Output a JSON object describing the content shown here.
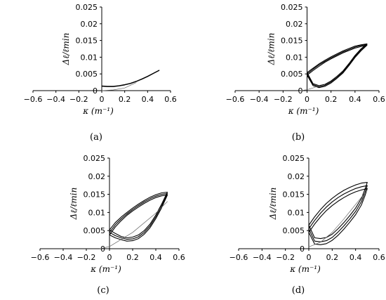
{
  "figure": {
    "panels": [
      "(a)",
      "(b)",
      "(c)",
      "(d)"
    ]
  },
  "chart_data": [
    {
      "type": "line",
      "panel_label": "(a)",
      "xlabel": "κ (m⁻¹)",
      "ylabel": "Δℓ/ℓmin",
      "xlim": [
        -0.6,
        0.6
      ],
      "ylim": [
        0,
        0.025
      ],
      "xticks": [
        -0.6,
        -0.4,
        -0.2,
        0,
        0.2,
        0.4,
        0.6
      ],
      "yticks": [
        0,
        0.005,
        0.01,
        0.015,
        0.02,
        0.025
      ],
      "xtick_labels": [
        "−0.6",
        "−0.4",
        "−0.2",
        "0",
        "0.2",
        "0.4",
        "0.6"
      ],
      "ytick_labels": [
        "0",
        "0.005",
        "0.01",
        "0.015",
        "0.02",
        "0.025"
      ],
      "series": [
        {
          "style": "main",
          "x": [
            0.0,
            0.05,
            0.1,
            0.15,
            0.2,
            0.25,
            0.3,
            0.35,
            0.4,
            0.45,
            0.5
          ],
          "y": [
            0.0014,
            0.0013,
            0.0013,
            0.0015,
            0.0018,
            0.0022,
            0.0028,
            0.0035,
            0.0043,
            0.0052,
            0.0061
          ]
        },
        {
          "style": "main",
          "x": [
            0.5,
            0.45,
            0.4,
            0.35,
            0.3,
            0.25,
            0.2,
            0.15,
            0.1,
            0.05,
            0.0
          ],
          "y": [
            0.006,
            0.0051,
            0.0042,
            0.0034,
            0.0027,
            0.0021,
            0.0017,
            0.0014,
            0.0012,
            0.0012,
            0.0013
          ]
        },
        {
          "style": "thin",
          "x": [
            0.0,
            0.1,
            0.2,
            0.3
          ],
          "y": [
            0.0,
            0.0002,
            0.0008,
            0.0024
          ]
        }
      ]
    },
    {
      "type": "line",
      "panel_label": "(b)",
      "xlabel": "κ (m⁻¹)",
      "ylabel": "Δℓ/ℓmin",
      "xlim": [
        -0.6,
        0.6
      ],
      "ylim": [
        0,
        0.025
      ],
      "xticks": [
        -0.6,
        -0.4,
        -0.2,
        0,
        0.2,
        0.4,
        0.6
      ],
      "yticks": [
        0,
        0.005,
        0.01,
        0.015,
        0.02,
        0.025
      ],
      "xtick_labels": [
        "−0.6",
        "−0.4",
        "−0.2",
        "0",
        "0.2",
        "0.4",
        "0.6"
      ],
      "ytick_labels": [
        "0",
        "0.005",
        "0.01",
        "0.015",
        "0.02",
        "0.025"
      ],
      "series": [
        {
          "style": "main",
          "x": [
            0.0,
            0.05,
            0.1,
            0.15,
            0.2,
            0.25,
            0.3,
            0.35,
            0.4,
            0.45,
            0.5,
            0.45,
            0.4,
            0.35,
            0.3,
            0.25,
            0.2,
            0.15,
            0.1,
            0.05,
            0.0
          ],
          "y": [
            0.005,
            0.0064,
            0.0077,
            0.0088,
            0.0098,
            0.0107,
            0.0116,
            0.0123,
            0.013,
            0.0135,
            0.0138,
            0.0122,
            0.0102,
            0.0078,
            0.0056,
            0.004,
            0.0026,
            0.0016,
            0.0012,
            0.0018,
            0.005
          ]
        },
        {
          "style": "main",
          "x": [
            0.0,
            0.05,
            0.1,
            0.15,
            0.2,
            0.25,
            0.3,
            0.35,
            0.4,
            0.45,
            0.5,
            0.45,
            0.4,
            0.35,
            0.3,
            0.25,
            0.2,
            0.15,
            0.1,
            0.05,
            0.0
          ],
          "y": [
            0.0046,
            0.006,
            0.0073,
            0.0085,
            0.0095,
            0.0104,
            0.0113,
            0.012,
            0.0127,
            0.0132,
            0.0136,
            0.0119,
            0.0099,
            0.0075,
            0.0053,
            0.0037,
            0.0023,
            0.0013,
            0.0009,
            0.0015,
            0.0046
          ]
        },
        {
          "style": "main",
          "x": [
            0.0,
            0.05,
            0.1,
            0.15,
            0.2,
            0.25,
            0.3,
            0.35,
            0.4,
            0.45,
            0.5,
            0.45,
            0.4,
            0.35,
            0.3,
            0.25,
            0.2,
            0.15,
            0.1,
            0.05,
            0.0
          ],
          "y": [
            0.0054,
            0.0067,
            0.008,
            0.0091,
            0.0101,
            0.011,
            0.0119,
            0.0126,
            0.0133,
            0.0137,
            0.014,
            0.0125,
            0.0105,
            0.0081,
            0.0059,
            0.0043,
            0.0029,
            0.0019,
            0.0015,
            0.0021,
            0.0054
          ]
        },
        {
          "style": "thin",
          "x": [
            -0.05,
            0.0,
            0.05,
            0.1
          ],
          "y": [
            0.0,
            0.0003,
            0.0008,
            0.0015
          ]
        }
      ]
    },
    {
      "type": "line",
      "panel_label": "(c)",
      "xlabel": "κ (m⁻¹)",
      "ylabel": "Δℓ/ℓmin",
      "xlim": [
        -0.6,
        0.6
      ],
      "ylim": [
        0,
        0.025
      ],
      "xticks": [
        -0.6,
        -0.4,
        -0.2,
        0,
        0.2,
        0.4,
        0.6
      ],
      "yticks": [
        0,
        0.005,
        0.01,
        0.015,
        0.02,
        0.025
      ],
      "xtick_labels": [
        "−0.6",
        "−0.4",
        "−0.2",
        "0",
        "0.2",
        "0.4",
        "0.6"
      ],
      "ytick_labels": [
        "0",
        "0.005",
        "0.01",
        "0.015",
        "0.02",
        "0.025"
      ],
      "series": [
        {
          "style": "main",
          "x": [
            0.0,
            0.05,
            0.1,
            0.15,
            0.2,
            0.25,
            0.3,
            0.35,
            0.4,
            0.45,
            0.5,
            0.45,
            0.4,
            0.35,
            0.3,
            0.25,
            0.2,
            0.15,
            0.1,
            0.05,
            0.0
          ],
          "y": [
            0.0045,
            0.0066,
            0.0082,
            0.0096,
            0.0108,
            0.0119,
            0.0129,
            0.0138,
            0.0145,
            0.015,
            0.0152,
            0.0118,
            0.0088,
            0.0063,
            0.0045,
            0.0033,
            0.0027,
            0.0026,
            0.003,
            0.0036,
            0.0045
          ]
        },
        {
          "style": "main",
          "x": [
            0.0,
            0.05,
            0.1,
            0.15,
            0.2,
            0.25,
            0.3,
            0.35,
            0.4,
            0.45,
            0.5,
            0.45,
            0.4,
            0.35,
            0.3,
            0.25,
            0.2,
            0.15,
            0.1,
            0.05,
            0.0
          ],
          "y": [
            0.0038,
            0.006,
            0.0077,
            0.0092,
            0.0104,
            0.0115,
            0.0125,
            0.0134,
            0.0141,
            0.0146,
            0.0148,
            0.0113,
            0.0083,
            0.0058,
            0.004,
            0.0028,
            0.0022,
            0.0021,
            0.0025,
            0.003,
            0.0038
          ]
        },
        {
          "style": "main",
          "x": [
            0.0,
            0.05,
            0.1,
            0.15,
            0.2,
            0.25,
            0.3,
            0.35,
            0.4,
            0.45,
            0.5,
            0.45,
            0.4,
            0.35,
            0.3,
            0.25,
            0.2,
            0.15,
            0.1,
            0.05,
            0.0
          ],
          "y": [
            0.0052,
            0.0072,
            0.0087,
            0.01,
            0.0112,
            0.0123,
            0.0133,
            0.0142,
            0.0149,
            0.0154,
            0.0156,
            0.0123,
            0.0093,
            0.0068,
            0.005,
            0.0038,
            0.0032,
            0.003,
            0.0034,
            0.0042,
            0.0052
          ]
        },
        {
          "style": "thin",
          "x": [
            -0.08,
            0.0,
            0.2,
            0.4,
            0.5
          ],
          "y": [
            0.0,
            0.0006,
            0.0045,
            0.0098,
            0.013
          ]
        }
      ]
    },
    {
      "type": "line",
      "panel_label": "(d)",
      "xlabel": "κ (m⁻¹)",
      "ylabel": "Δℓ/ℓmin",
      "xlim": [
        -0.6,
        0.6
      ],
      "ylim": [
        0,
        0.025
      ],
      "xticks": [
        -0.6,
        -0.4,
        -0.2,
        0,
        0.2,
        0.4,
        0.6
      ],
      "yticks": [
        0,
        0.005,
        0.01,
        0.015,
        0.02,
        0.025
      ],
      "xtick_labels": [
        "−0.6",
        "−0.4",
        "−0.2",
        "0",
        "0.2",
        "0.4",
        "0.6"
      ],
      "ytick_labels": [
        "0",
        "0.005",
        "0.01",
        "0.015",
        "0.02",
        "0.025"
      ],
      "series": [
        {
          "style": "main",
          "x": [
            0.0,
            0.05,
            0.1,
            0.15,
            0.2,
            0.25,
            0.3,
            0.35,
            0.4,
            0.45,
            0.5,
            0.48,
            0.45,
            0.4,
            0.35,
            0.3,
            0.25,
            0.2,
            0.15,
            0.1,
            0.05,
            0.0
          ],
          "y": [
            0.0055,
            0.0078,
            0.0098,
            0.0115,
            0.0129,
            0.0141,
            0.0151,
            0.0159,
            0.0166,
            0.0171,
            0.0174,
            0.0155,
            0.013,
            0.0103,
            0.0082,
            0.0063,
            0.0046,
            0.0031,
            0.0022,
            0.0019,
            0.0021,
            0.0055
          ]
        },
        {
          "style": "main",
          "x": [
            0.0,
            0.05,
            0.1,
            0.15,
            0.2,
            0.25,
            0.3,
            0.35,
            0.4,
            0.45,
            0.5,
            0.48,
            0.45,
            0.4,
            0.35,
            0.3,
            0.25,
            0.2,
            0.15,
            0.1,
            0.05,
            0.0
          ],
          "y": [
            0.0045,
            0.0068,
            0.0088,
            0.0105,
            0.0119,
            0.0131,
            0.0141,
            0.015,
            0.0157,
            0.0162,
            0.0166,
            0.0146,
            0.0121,
            0.0094,
            0.0073,
            0.0054,
            0.0037,
            0.0023,
            0.0014,
            0.0011,
            0.0013,
            0.0045
          ]
        },
        {
          "style": "main",
          "x": [
            0.0,
            0.05,
            0.1,
            0.15,
            0.2,
            0.25,
            0.3,
            0.35,
            0.4,
            0.45,
            0.5,
            0.48,
            0.45,
            0.4,
            0.35,
            0.3,
            0.25,
            0.2,
            0.15,
            0.1,
            0.05,
            0.0
          ],
          "y": [
            0.0065,
            0.0088,
            0.0108,
            0.0125,
            0.0139,
            0.0151,
            0.0161,
            0.0169,
            0.0176,
            0.0181,
            0.0183,
            0.0164,
            0.0139,
            0.0112,
            0.0091,
            0.0072,
            0.0055,
            0.004,
            0.0031,
            0.0028,
            0.003,
            0.0065
          ]
        },
        {
          "style": "thin",
          "x": [
            0.0,
            0.1,
            0.2,
            0.3,
            0.4,
            0.5
          ],
          "y": [
            0.0005,
            0.0018,
            0.0045,
            0.0082,
            0.0122,
            0.0162
          ]
        }
      ]
    }
  ]
}
